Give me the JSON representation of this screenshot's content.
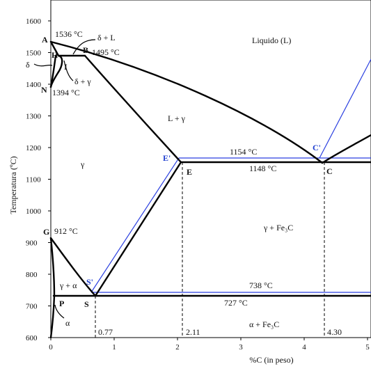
{
  "colors": {
    "equilibrium_lines": "#000000",
    "metastable_lines": "#2a3fe0",
    "metastable_labels": "#1f3fd0"
  },
  "axes": {
    "ylabel": "Temperatura (ºC)",
    "xlabel": "%C (in peso)",
    "y_ticks": [
      "1600",
      "1500",
      "1400",
      "1300",
      "1200",
      "1100",
      "1000",
      "900",
      "800",
      "700",
      "600"
    ],
    "x_ticks": [
      "0",
      "1",
      "2",
      "3",
      "4",
      "5"
    ]
  },
  "phases": {
    "liquid": "Liquido (L)",
    "delta_L": "δ + L",
    "delta": "δ",
    "delta_gamma": "δ + γ",
    "L_gamma": "L + γ",
    "gamma": "γ",
    "gamma_cementite": "γ + Fe₃C",
    "gamma_alpha": "γ + α",
    "alpha": "α",
    "alpha_cementite": "α + Fe₃C"
  },
  "points": {
    "A": "A",
    "H": "H",
    "B": "B",
    "I": "I",
    "N": "N",
    "E": "E",
    "C": "C",
    "G": "G",
    "P": "P",
    "S": "S",
    "E_prime": "E'",
    "C_prime": "C'",
    "S_prime": "S'"
  },
  "temperatures": {
    "A": "1536 °C",
    "B": "1495 °C",
    "N": "1394 °C",
    "C_prime": "1154 °C",
    "C": "1148 °C",
    "G": "912 °C",
    "S_prime": "738 °C",
    "S": "727 °C"
  },
  "compositions": {
    "S": "0.77",
    "E": "2.11",
    "C": "4.30"
  },
  "chart_data": {
    "type": "line",
    "title": "",
    "xlabel": "%C (in peso)",
    "ylabel": "Temperatura (ºC)",
    "xlim": [
      0,
      5
    ],
    "ylim": [
      600,
      1650
    ],
    "grid": false,
    "series": [
      {
        "x": [
          0,
          4.3
        ],
        "y": [
          1536,
          1148
        ]
      },
      {
        "x": [
          4.3,
          5
        ],
        "y": [
          1148,
          1230
        ]
      },
      {
        "x": [
          0,
          0.54
        ],
        "y": [
          1536,
          1495
        ]
      },
      {
        "x": [
          0.54,
          2.11
        ],
        "y": [
          1495,
          1148
        ]
      },
      {
        "x": [
          0.09,
          0.54
        ],
        "y": [
          1495,
          1495
        ]
      },
      {
        "x": [
          0,
          0.09
        ],
        "y": [
          1536,
          1495
        ]
      },
      {
        "x": [
          0.09,
          0.16,
          0.11,
          0.0
        ],
        "y": [
          1495,
          1490,
          1450,
          1394
        ]
      },
      {
        "x": [
          0.05,
          0.04,
          0.0
        ],
        "y": [
          1495,
          1450,
          1394
        ]
      },
      {
        "x": [
          2.11,
          5
        ],
        "y": [
          1148,
          1148
        ]
      },
      {
        "x": [
          0,
          0.77
        ],
        "y": [
          912,
          727
        ]
      },
      {
        "x": [
          0.77,
          2.11
        ],
        "y": [
          727,
          1148
        ]
      },
      {
        "x": [
          0.02,
          0.77
        ],
        "y": [
          727,
          727
        ]
      },
      {
        "x": [
          0.77,
          5
        ],
        "y": [
          727,
          727
        ]
      },
      {
        "x": [
          0,
          0.02,
          0.0
        ],
        "y": [
          912,
          727,
          600
        ]
      },
      {
        "x": [
          0.68,
          2.03
        ],
        "y": [
          738,
          1154
        ]
      },
      {
        "x": [
          2.03,
          5
        ],
        "y": [
          1154,
          1154
        ]
      },
      {
        "x": [
          0.68,
          5
        ],
        "y": [
          738,
          738
        ]
      },
      {
        "x": [
          4.26,
          5
        ],
        "y": [
          1154,
          1490
        ]
      }
    ]
  }
}
